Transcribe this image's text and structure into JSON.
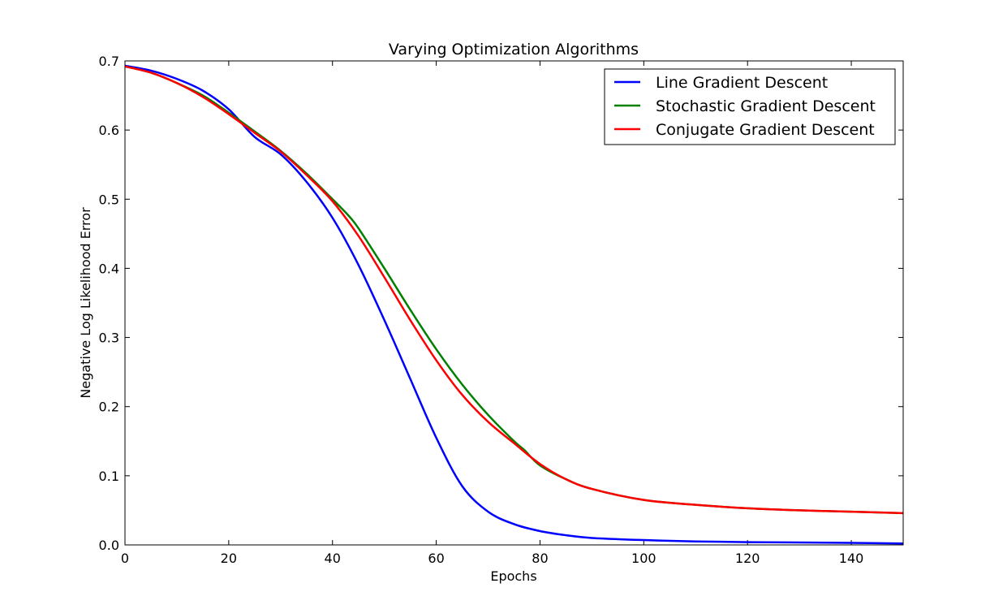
{
  "chart_data": {
    "type": "line",
    "title": "Varying Optimization Algorithms",
    "xlabel": "Epochs",
    "ylabel": "Negative Log Likelihood Error",
    "xlim": [
      0,
      150
    ],
    "ylim": [
      0,
      0.7
    ],
    "xticks": [
      "0",
      "20",
      "40",
      "60",
      "80",
      "100",
      "120",
      "140"
    ],
    "yticks": [
      "0.0",
      "0.1",
      "0.2",
      "0.3",
      "0.4",
      "0.5",
      "0.6",
      "0.7"
    ],
    "grid": false,
    "legend_position": "top-right",
    "series": [
      {
        "name": "Line Gradient Descent",
        "color": "#0000ff",
        "x": [
          0,
          5,
          10,
          15,
          20,
          25,
          30,
          35,
          40,
          45,
          50,
          55,
          60,
          65,
          70,
          75,
          80,
          85,
          90,
          100,
          110,
          120,
          130,
          140,
          150
        ],
        "y": [
          0.693,
          0.686,
          0.674,
          0.657,
          0.63,
          0.59,
          0.565,
          0.525,
          0.473,
          0.405,
          0.325,
          0.24,
          0.155,
          0.085,
          0.048,
          0.03,
          0.02,
          0.014,
          0.01,
          0.007,
          0.005,
          0.004,
          0.0035,
          0.003,
          0.002
        ]
      },
      {
        "name": "Stochastic Gradient Descent",
        "color": "#008000",
        "x": [
          0,
          5,
          10,
          15,
          20,
          25,
          30,
          35,
          40,
          43,
          45,
          50,
          55,
          60,
          65,
          70,
          75,
          77,
          80,
          85,
          90,
          100,
          110,
          120,
          130,
          140,
          150
        ],
        "y": [
          0.692,
          0.683,
          0.668,
          0.65,
          0.625,
          0.598,
          0.57,
          0.537,
          0.5,
          0.477,
          0.458,
          0.4,
          0.34,
          0.283,
          0.232,
          0.188,
          0.15,
          0.137,
          0.115,
          0.095,
          0.081,
          0.065,
          0.058,
          0.053,
          0.05,
          0.048,
          0.046
        ]
      },
      {
        "name": "Conjugate Gradient Descent",
        "color": "#ff0000",
        "x": [
          0,
          5,
          10,
          15,
          20,
          25,
          30,
          35,
          40,
          45,
          50,
          55,
          60,
          65,
          70,
          75,
          80,
          85,
          90,
          100,
          110,
          120,
          130,
          140,
          150
        ],
        "y": [
          0.692,
          0.683,
          0.668,
          0.648,
          0.623,
          0.596,
          0.569,
          0.535,
          0.497,
          0.447,
          0.387,
          0.325,
          0.267,
          0.217,
          0.178,
          0.147,
          0.117,
          0.095,
          0.081,
          0.065,
          0.058,
          0.053,
          0.05,
          0.048,
          0.046
        ]
      }
    ]
  }
}
